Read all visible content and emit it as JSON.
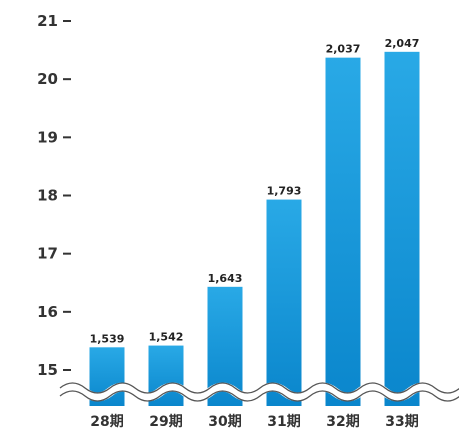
{
  "chart_data": {
    "type": "bar",
    "title": "",
    "xlabel": "",
    "ylabel": "",
    "categories": [
      "28期",
      "29期",
      "30期",
      "31期",
      "32期",
      "33期"
    ],
    "values": [
      1539,
      1542,
      1643,
      1793,
      2037,
      2047
    ],
    "value_labels": [
      "1,539",
      "1,542",
      "1,643",
      "1,793",
      "2,037",
      "2,047"
    ],
    "y_ticks": [
      {
        "label": "15",
        "value": 1500
      },
      {
        "label": "16",
        "value": 1600
      },
      {
        "label": "17",
        "value": 1700
      },
      {
        "label": "18",
        "value": 1800
      },
      {
        "label": "19",
        "value": 1900
      },
      {
        "label": "20",
        "value": 2000
      },
      {
        "label": "21",
        "value": 2100
      }
    ],
    "ylim": [
      1480,
      2100
    ],
    "axis_break": true,
    "grid": false,
    "colors": {
      "bar_top": "#29a9e6",
      "bar_bottom": "#0a86cc",
      "text": "#333333"
    }
  }
}
